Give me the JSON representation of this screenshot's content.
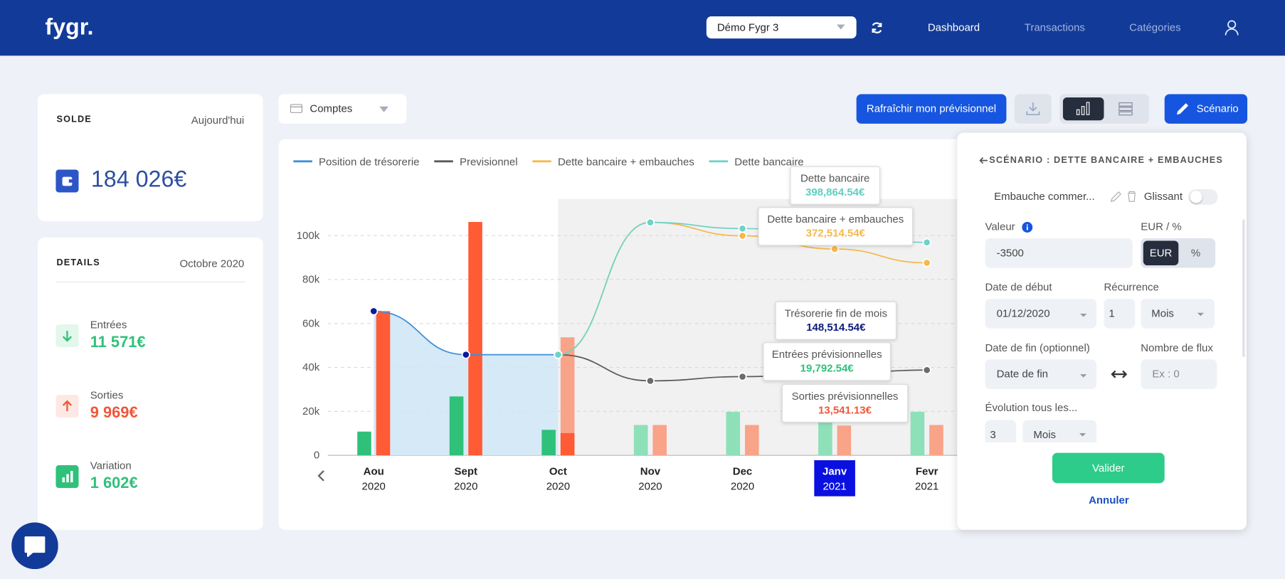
{
  "header": {
    "logo": "fygr.",
    "account": "Démo Fygr 3",
    "nav": [
      "Dashboard",
      "Transactions",
      "Catégories"
    ]
  },
  "solde": {
    "label": "SOLDE",
    "date": "Aujourd'hui",
    "amount": "184 026€"
  },
  "details": {
    "label": "DETAILS",
    "date": "Octobre 2020",
    "items": [
      {
        "label": "Entrées",
        "value": "11 571€"
      },
      {
        "label": "Sorties",
        "value": "9 969€"
      },
      {
        "label": "Variation",
        "value": "1 602€"
      }
    ]
  },
  "toolbar": {
    "accounts": "Comptes",
    "refresh": "Rafraîchir mon prévisionnel",
    "scenario": "Scénario"
  },
  "chart": {
    "type": "bar-line",
    "categories": [
      "Aou",
      "Sept",
      "Oct",
      "Nov",
      "Dec",
      "Janv",
      "Fevr"
    ],
    "years": [
      "2020",
      "2020",
      "2020",
      "2020",
      "2020",
      "2021",
      "2021"
    ],
    "highlight": 5,
    "ylim": [
      0,
      120000
    ],
    "yticks": [
      0,
      {
        "value": 20000,
        "label": "20k"
      },
      {
        "value": 40000,
        "label": "40k"
      },
      {
        "value": 60000,
        "label": "60k"
      },
      {
        "value": 80000,
        "label": "80k"
      },
      {
        "value": 100000,
        "label": "100k"
      }
    ],
    "grid": true,
    "lines": [
      {
        "name": "Position de trésorerie",
        "color": "#3d8fd8",
        "area": "#cfe5f5",
        "point": "#0b1b9c",
        "values": [
          65600,
          45800,
          45800,
          null,
          null,
          null,
          null
        ]
      },
      {
        "name": "Previsionnel",
        "color": "#5a5a5a",
        "point": "#6b6b6b",
        "values": [
          null,
          null,
          45800,
          33900,
          35800,
          37300,
          38800
        ]
      },
      {
        "name": "Dette bancaire + embauches",
        "color": "#f5b84a",
        "point": "#f5b84a",
        "values": [
          null,
          null,
          45800,
          106000,
          99900,
          93900,
          87600
        ]
      },
      {
        "name": "Dette bancaire",
        "color": "#6fd3c7",
        "point": "#6fd3c7",
        "values": [
          null,
          null,
          45800,
          106000,
          103200,
          100500,
          96900
        ]
      }
    ],
    "bars": [
      {
        "colors": [
          "#2fc17a",
          "#2fc17a",
          "#2fc17a",
          "#8ee0b8",
          "#8ee0b8",
          "#8ee0b8",
          "#8ee0b8"
        ],
        "values": [
          10800,
          26800,
          11600,
          13800,
          19800,
          19792.54,
          19800
        ]
      },
      {
        "colors": [
          "#f9a389",
          "#f9a389",
          "#f9a389",
          "#f9a389",
          "#f9a389",
          "#f9a389",
          "#f9a389"
        ],
        "values": [
          null,
          null,
          53700,
          null,
          null,
          null,
          null
        ]
      },
      {
        "colors": [
          "#ff5b35",
          "#ff5b35",
          "#ff5b35",
          "#f9a389",
          "#f9a389",
          "#f9a389",
          "#f9a389"
        ],
        "values": [
          65600,
          106200,
          10100,
          13800,
          13800,
          13541.13,
          13800
        ]
      }
    ],
    "tooltips": [
      {
        "label": "Dette bancaire",
        "value": "398,864.54€",
        "color": "#5fcfc0"
      },
      {
        "label": "Dette bancaire + embauches",
        "value": "372,514.54€",
        "color": "#f5b84a"
      },
      {
        "label": "Trésorerie fin de mois",
        "value": "148,514.54€",
        "color": "#0b1b7c"
      },
      {
        "label": "Entrées prévisionnelles",
        "value": "19,792.54€",
        "color": "#2fc17a"
      },
      {
        "label": "Sorties prévisionnelles",
        "value": "13,541.13€",
        "color": "#f0573a"
      }
    ]
  },
  "scenario": {
    "title": "SCÉNARIO : DETTE BANCAIRE + EMBAUCHES",
    "item": "Embauche commer...",
    "sliding": "Glissant",
    "value_label": "Valeur",
    "unit_label": "EUR / %",
    "value": "-3500",
    "unit_options": [
      "EUR",
      "%"
    ],
    "start_label": "Date de début",
    "recurrence_label": "Récurrence",
    "start": "01/12/2020",
    "recurrence": "1",
    "recurrence_unit": "Mois",
    "end_label": "Date de fin (optionnel)",
    "count_label": "Nombre de flux",
    "end": "Date de fin",
    "count": "Ex : 0",
    "evolution_label": "Évolution tous les...",
    "evolution": "3",
    "evolution_unit": "Mois",
    "submit": "Valider",
    "cancel": "Annuler"
  }
}
